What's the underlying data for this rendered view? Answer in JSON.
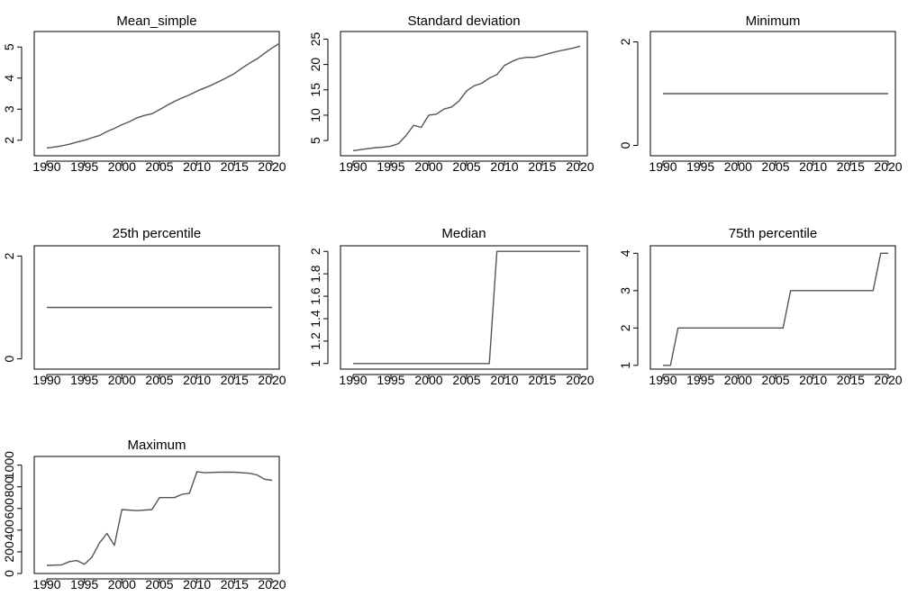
{
  "chart_data": [
    {
      "type": "line",
      "title": "Mean_simple",
      "xlim": [
        1990,
        2020
      ],
      "ylim": [
        1.5,
        5.5
      ],
      "x_ticks": [
        1990,
        1995,
        2000,
        2005,
        2010,
        2015,
        2020
      ],
      "x_tick_labels": [
        "1990",
        "1995",
        "2000",
        "2005",
        "2010",
        "2015",
        "2020"
      ],
      "y_ticks": [
        2,
        3,
        4,
        5
      ],
      "y_tick_labels": [
        "2",
        "3",
        "4",
        "5"
      ],
      "series": [
        {
          "points": [
            [
              1990,
              1.75
            ],
            [
              1991,
              1.78
            ],
            [
              1992,
              1.82
            ],
            [
              1993,
              1.87
            ],
            [
              1994,
              1.94
            ],
            [
              1995,
              2.0
            ],
            [
              1996,
              2.08
            ],
            [
              1997,
              2.15
            ],
            [
              1998,
              2.28
            ],
            [
              1999,
              2.38
            ],
            [
              2000,
              2.5
            ],
            [
              2001,
              2.6
            ],
            [
              2002,
              2.72
            ],
            [
              2003,
              2.8
            ],
            [
              2004,
              2.85
            ],
            [
              2005,
              2.98
            ],
            [
              2006,
              3.12
            ],
            [
              2007,
              3.25
            ],
            [
              2008,
              3.36
            ],
            [
              2009,
              3.46
            ],
            [
              2010,
              3.58
            ],
            [
              2011,
              3.68
            ],
            [
              2012,
              3.78
            ],
            [
              2013,
              3.9
            ],
            [
              2014,
              4.02
            ],
            [
              2015,
              4.15
            ],
            [
              2016,
              4.32
            ],
            [
              2017,
              4.48
            ],
            [
              2018,
              4.62
            ],
            [
              2019,
              4.8
            ],
            [
              2020,
              4.97
            ],
            [
              2021,
              5.12
            ]
          ]
        }
      ]
    },
    {
      "type": "line",
      "title": "Standard deviation",
      "xlim": [
        1990,
        2020
      ],
      "ylim": [
        2,
        26.5
      ],
      "x_ticks": [
        1990,
        1995,
        2000,
        2005,
        2010,
        2015,
        2020
      ],
      "x_tick_labels": [
        "1990",
        "1995",
        "2000",
        "2005",
        "2010",
        "2015",
        "2020"
      ],
      "y_ticks": [
        5,
        10,
        15,
        20,
        25
      ],
      "y_tick_labels": [
        "5",
        "10",
        "15",
        "20",
        "25"
      ],
      "series": [
        {
          "points": [
            [
              1990,
              3.0
            ],
            [
              1991,
              3.2
            ],
            [
              1992,
              3.4
            ],
            [
              1993,
              3.6
            ],
            [
              1994,
              3.7
            ],
            [
              1995,
              3.9
            ],
            [
              1996,
              4.4
            ],
            [
              1997,
              6.0
            ],
            [
              1998,
              8.0
            ],
            [
              1999,
              7.6
            ],
            [
              2000,
              10.0
            ],
            [
              2001,
              10.2
            ],
            [
              2002,
              11.2
            ],
            [
              2003,
              11.6
            ],
            [
              2004,
              12.8
            ],
            [
              2005,
              14.8
            ],
            [
              2006,
              15.8
            ],
            [
              2007,
              16.3
            ],
            [
              2008,
              17.3
            ],
            [
              2009,
              18.0
            ],
            [
              2010,
              19.8
            ],
            [
              2011,
              20.6
            ],
            [
              2012,
              21.2
            ],
            [
              2013,
              21.4
            ],
            [
              2014,
              21.4
            ],
            [
              2015,
              21.8
            ],
            [
              2016,
              22.2
            ],
            [
              2017,
              22.6
            ],
            [
              2018,
              22.9
            ],
            [
              2019,
              23.2
            ],
            [
              2020,
              23.6
            ]
          ]
        }
      ]
    },
    {
      "type": "line",
      "title": "Minimum",
      "xlim": [
        1990,
        2020
      ],
      "ylim": [
        -0.2,
        2.2
      ],
      "x_ticks": [
        1990,
        1995,
        2000,
        2005,
        2010,
        2015,
        2020
      ],
      "x_tick_labels": [
        "1990",
        "1995",
        "2000",
        "2005",
        "2010",
        "2015",
        "2020"
      ],
      "y_ticks": [
        0,
        2
      ],
      "y_tick_labels": [
        "0",
        "2"
      ],
      "series": [
        {
          "points": [
            [
              1990,
              1
            ],
            [
              2020,
              1
            ]
          ]
        }
      ]
    },
    {
      "type": "line",
      "title": "25th percentile",
      "xlim": [
        1990,
        2020
      ],
      "ylim": [
        -0.2,
        2.2
      ],
      "x_ticks": [
        1990,
        1995,
        2000,
        2005,
        2010,
        2015,
        2020
      ],
      "x_tick_labels": [
        "1990",
        "1995",
        "2000",
        "2005",
        "2010",
        "2015",
        "2020"
      ],
      "y_ticks": [
        0,
        2
      ],
      "y_tick_labels": [
        "0",
        "2"
      ],
      "series": [
        {
          "points": [
            [
              1990,
              1
            ],
            [
              2020,
              1
            ]
          ]
        }
      ]
    },
    {
      "type": "line",
      "title": "Median",
      "xlim": [
        1990,
        2020
      ],
      "ylim": [
        0.95,
        2.05
      ],
      "x_ticks": [
        1990,
        1995,
        2000,
        2005,
        2010,
        2015,
        2020
      ],
      "x_tick_labels": [
        "1990",
        "1995",
        "2000",
        "2005",
        "2010",
        "2015",
        "2020"
      ],
      "y_ticks": [
        1,
        1.2,
        1.4,
        1.6,
        1.8,
        2
      ],
      "y_tick_labels": [
        "1",
        "1.2",
        "1.4",
        "1.6",
        "1.8",
        "2"
      ],
      "series": [
        {
          "points": [
            [
              1990,
              1
            ],
            [
              2008,
              1
            ],
            [
              2009,
              2
            ],
            [
              2020,
              2
            ]
          ]
        }
      ]
    },
    {
      "type": "line",
      "title": "75th percentile",
      "xlim": [
        1990,
        2020
      ],
      "ylim": [
        0.9,
        4.2
      ],
      "x_ticks": [
        1990,
        1995,
        2000,
        2005,
        2010,
        2015,
        2020
      ],
      "x_tick_labels": [
        "1990",
        "1995",
        "2000",
        "2005",
        "2010",
        "2015",
        "2020"
      ],
      "y_ticks": [
        1,
        2,
        3,
        4
      ],
      "y_tick_labels": [
        "1",
        "2",
        "3",
        "4"
      ],
      "series": [
        {
          "points": [
            [
              1990,
              1
            ],
            [
              1991,
              1
            ],
            [
              1992,
              2
            ],
            [
              2006,
              2
            ],
            [
              2007,
              3
            ],
            [
              2018,
              3
            ],
            [
              2019,
              4
            ],
            [
              2020,
              4
            ]
          ]
        }
      ]
    },
    {
      "type": "line",
      "title": "Maximum",
      "xlim": [
        1990,
        2020
      ],
      "ylim": [
        0,
        1080
      ],
      "x_ticks": [
        1990,
        1995,
        2000,
        2005,
        2010,
        2015,
        2020
      ],
      "x_tick_labels": [
        "1990",
        "1995",
        "2000",
        "2005",
        "2010",
        "2015",
        "2020"
      ],
      "y_ticks": [
        0,
        200,
        400,
        600,
        800,
        1000
      ],
      "y_tick_labels": [
        "0",
        "200",
        "400",
        "600",
        "800",
        "1000"
      ],
      "series": [
        {
          "points": [
            [
              1990,
              75
            ],
            [
              1992,
              80
            ],
            [
              1993,
              110
            ],
            [
              1994,
              120
            ],
            [
              1995,
              85
            ],
            [
              1996,
              150
            ],
            [
              1997,
              280
            ],
            [
              1998,
              370
            ],
            [
              1999,
              260
            ],
            [
              2000,
              590
            ],
            [
              2002,
              580
            ],
            [
              2004,
              590
            ],
            [
              2005,
              700
            ],
            [
              2007,
              700
            ],
            [
              2008,
              730
            ],
            [
              2009,
              740
            ],
            [
              2010,
              940
            ],
            [
              2011,
              930
            ],
            [
              2013,
              935
            ],
            [
              2015,
              935
            ],
            [
              2017,
              925
            ],
            [
              2018,
              910
            ],
            [
              2019,
              870
            ],
            [
              2020,
              860
            ]
          ]
        }
      ]
    }
  ]
}
